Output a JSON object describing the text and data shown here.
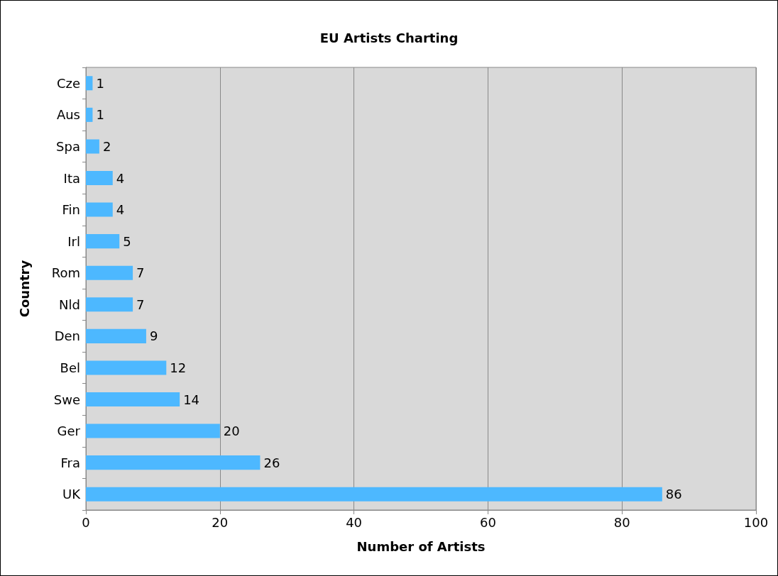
{
  "chart_data": {
    "type": "bar",
    "orientation": "horizontal",
    "title": "EU Artists Charting",
    "xlabel": "Number of Artists",
    "ylabel": "Country",
    "categories": [
      "Cze",
      "Aus",
      "Spa",
      "Ita",
      "Fin",
      "Irl",
      "Rom",
      "Nld",
      "Den",
      "Bel",
      "Swe",
      "Ger",
      "Fra",
      "UK"
    ],
    "values": [
      1,
      1,
      2,
      4,
      4,
      5,
      7,
      7,
      9,
      12,
      14,
      20,
      26,
      86
    ],
    "color": "#4db8ff",
    "xlim": [
      0,
      100
    ],
    "xticks": [
      0,
      20,
      40,
      60,
      80,
      100
    ],
    "grid": "x",
    "data_labels": true
  }
}
